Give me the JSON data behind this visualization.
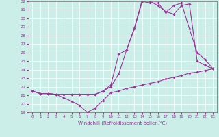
{
  "xlabel": "Windchill (Refroidissement éolien,°C)",
  "background_color": "#cceee8",
  "line_color": "#993399",
  "xlim": [
    -0.5,
    23.5
  ],
  "ylim": [
    19,
    32
  ],
  "yticks": [
    19,
    20,
    21,
    22,
    23,
    24,
    25,
    26,
    27,
    28,
    29,
    30,
    31,
    32
  ],
  "xticks": [
    0,
    1,
    2,
    3,
    4,
    5,
    6,
    7,
    8,
    9,
    10,
    11,
    12,
    13,
    14,
    15,
    16,
    17,
    18,
    19,
    20,
    21,
    22,
    23
  ],
  "line1_x": [
    0,
    1,
    2,
    3,
    4,
    5,
    6,
    7,
    8,
    9,
    10,
    11,
    12,
    13,
    14,
    15,
    16,
    17,
    18,
    19,
    20,
    21,
    22,
    23
  ],
  "line1_y": [
    21.5,
    21.2,
    21.2,
    21.1,
    20.7,
    20.3,
    19.8,
    19.0,
    19.5,
    20.4,
    21.3,
    21.5,
    21.8,
    22.0,
    22.2,
    22.4,
    22.6,
    22.9,
    23.1,
    23.3,
    23.6,
    23.7,
    23.9,
    24.1
  ],
  "line2_x": [
    0,
    1,
    2,
    3,
    4,
    5,
    6,
    7,
    8,
    9,
    10,
    11,
    12,
    13,
    14,
    15,
    16,
    17,
    18,
    19,
    20,
    21,
    22,
    23
  ],
  "line2_y": [
    21.5,
    21.2,
    21.2,
    21.1,
    21.1,
    21.1,
    21.1,
    21.1,
    21.1,
    21.5,
    22.2,
    25.8,
    26.3,
    28.8,
    32.0,
    31.8,
    31.8,
    30.7,
    31.5,
    31.8,
    28.8,
    26.0,
    25.2,
    24.1
  ],
  "line3_x": [
    0,
    1,
    2,
    3,
    4,
    5,
    6,
    7,
    8,
    9,
    10,
    11,
    12,
    13,
    14,
    15,
    16,
    17,
    18,
    19,
    20,
    21,
    22,
    23
  ],
  "line3_y": [
    21.5,
    21.2,
    21.2,
    21.1,
    21.1,
    21.1,
    21.1,
    21.1,
    21.1,
    21.5,
    22.0,
    23.5,
    26.3,
    28.9,
    32.2,
    32.0,
    31.5,
    30.8,
    30.5,
    31.5,
    31.7,
    25.0,
    24.5,
    24.1
  ]
}
